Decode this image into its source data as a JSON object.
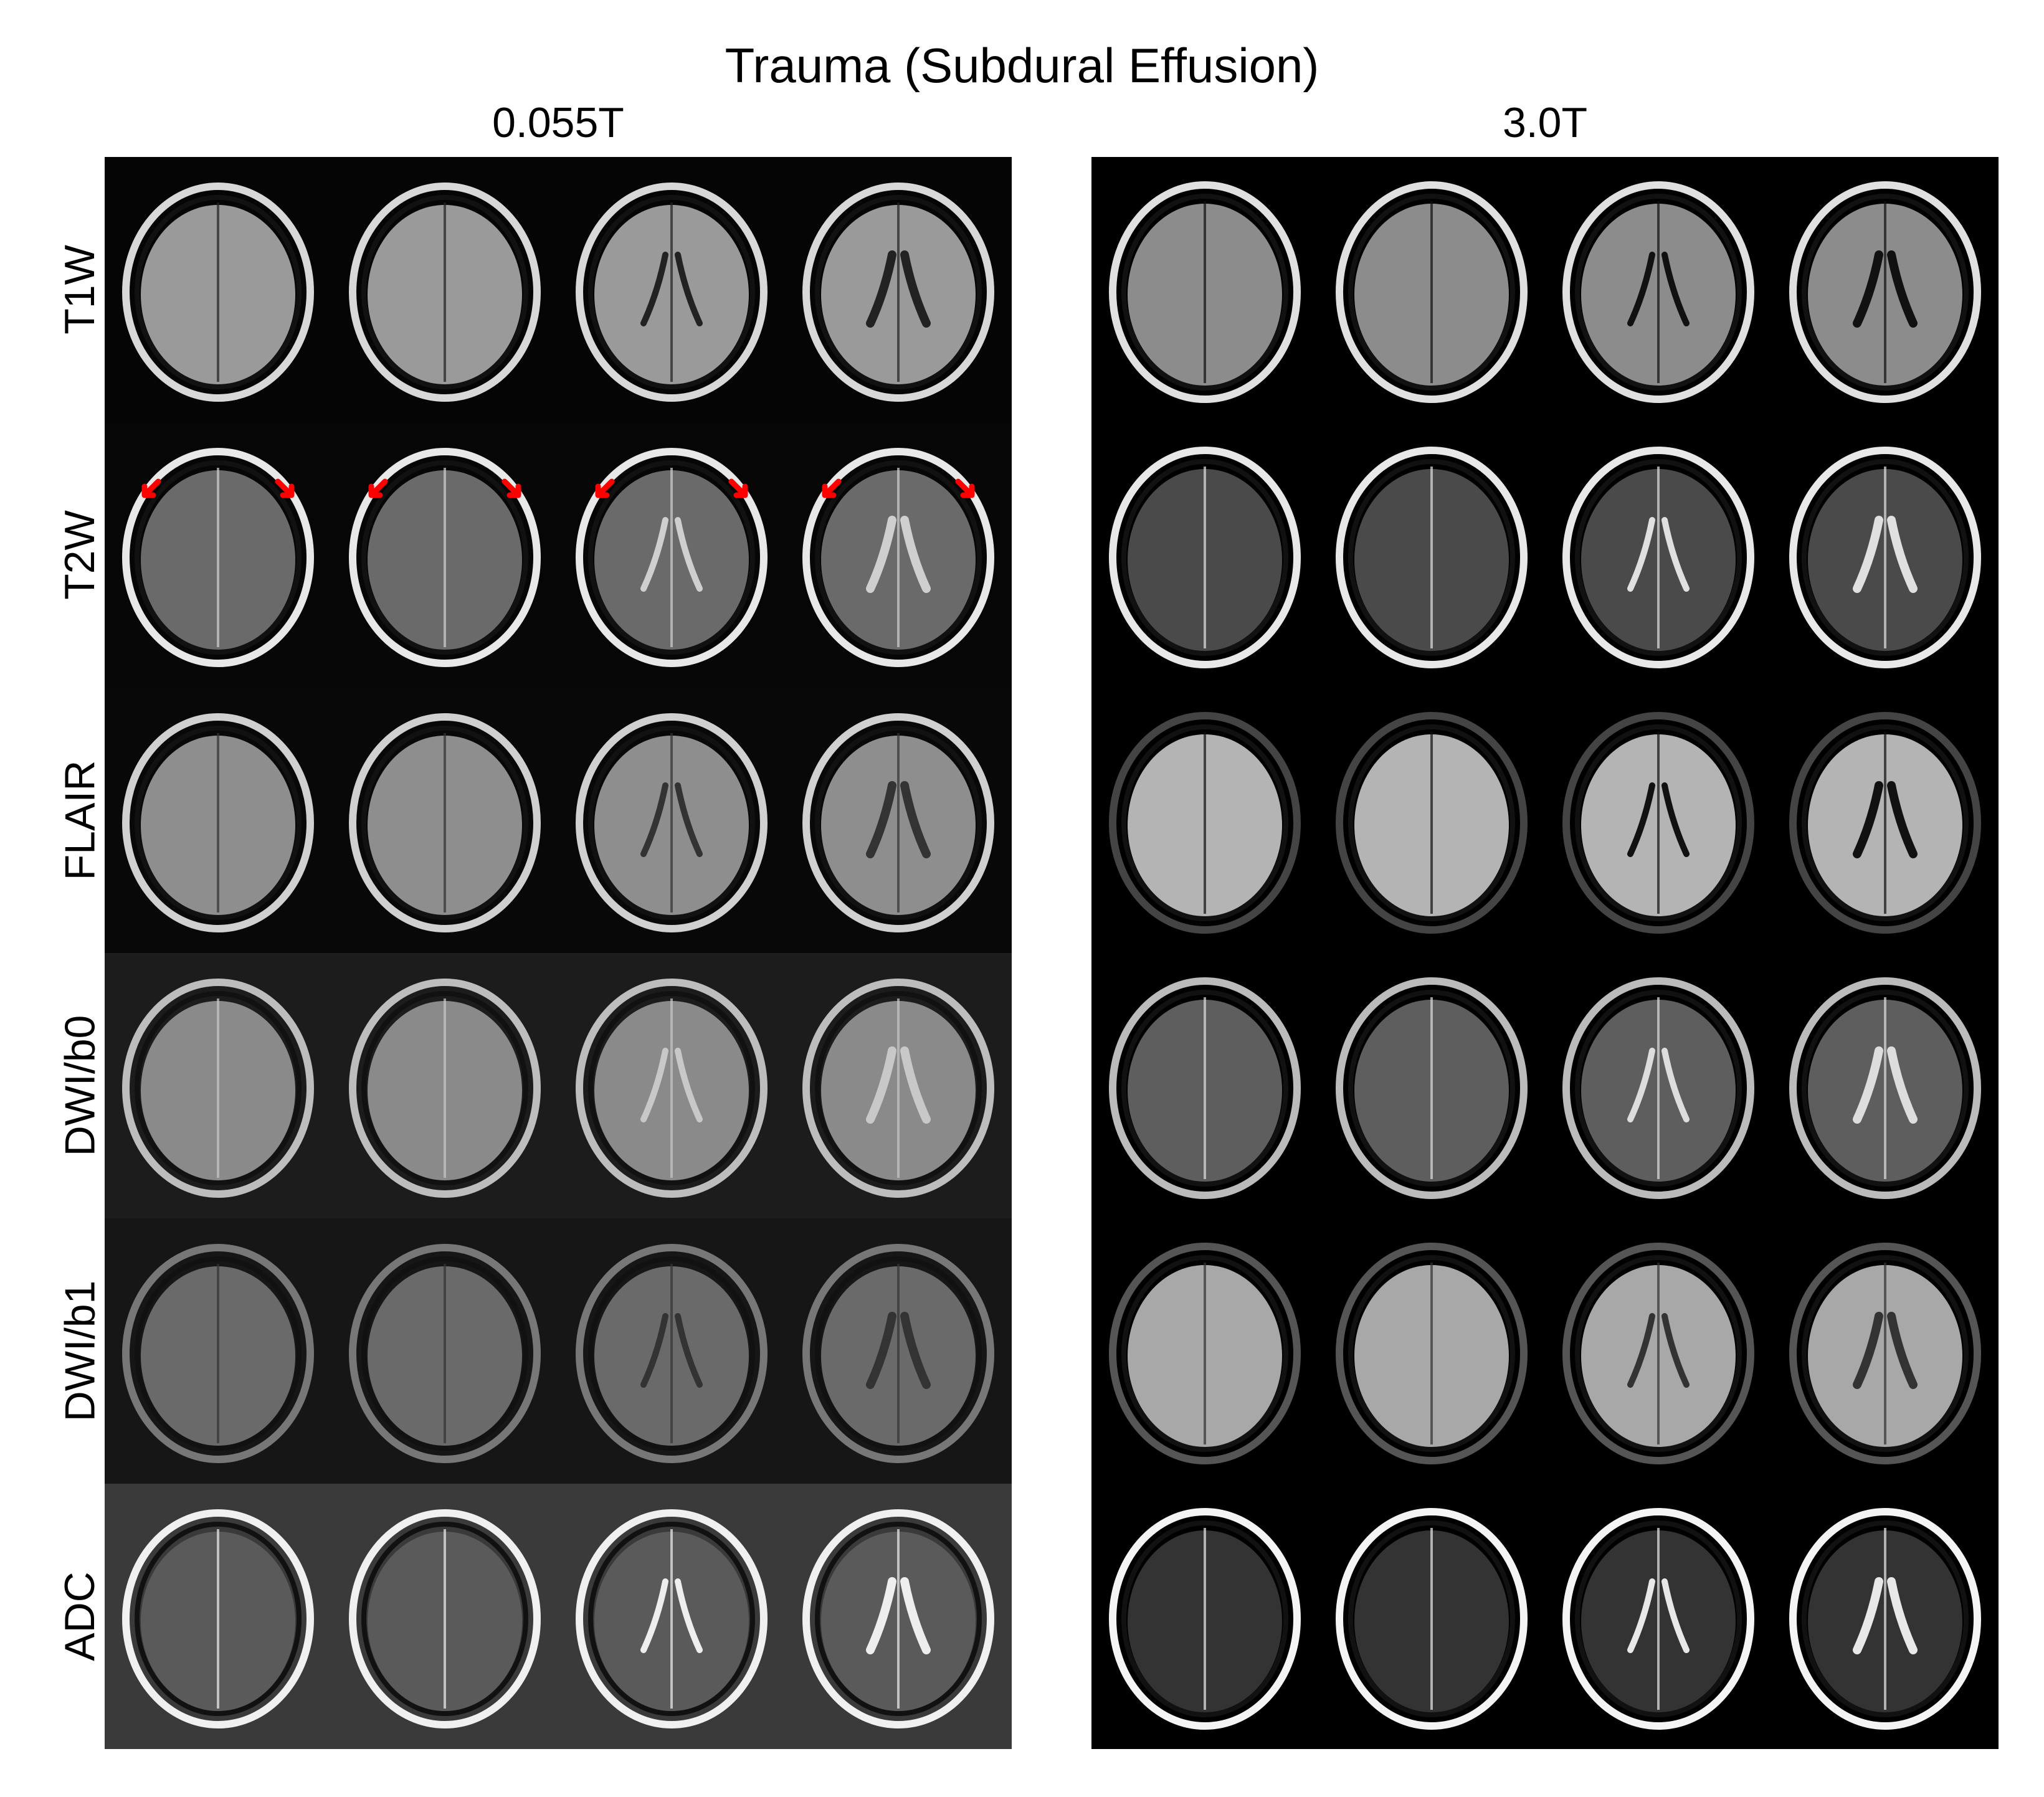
{
  "title": "Trauma (Subdural Effusion)",
  "panels": [
    {
      "label": "0.055T",
      "slices_per_row": 4
    },
    {
      "label": "3.0T",
      "slices_per_row": 4
    }
  ],
  "rows": [
    "T1W",
    "T2W",
    "FLAIR",
    "DWI/b0",
    "DWI/b1",
    "ADC"
  ],
  "annotations": {
    "arrow_color": "#ff0000",
    "arrow_row": "T2W",
    "arrow_panel": "0.055T",
    "arrows_per_slice": 2
  },
  "colors": {
    "background": "#ffffff",
    "panel_background": "#000000"
  }
}
